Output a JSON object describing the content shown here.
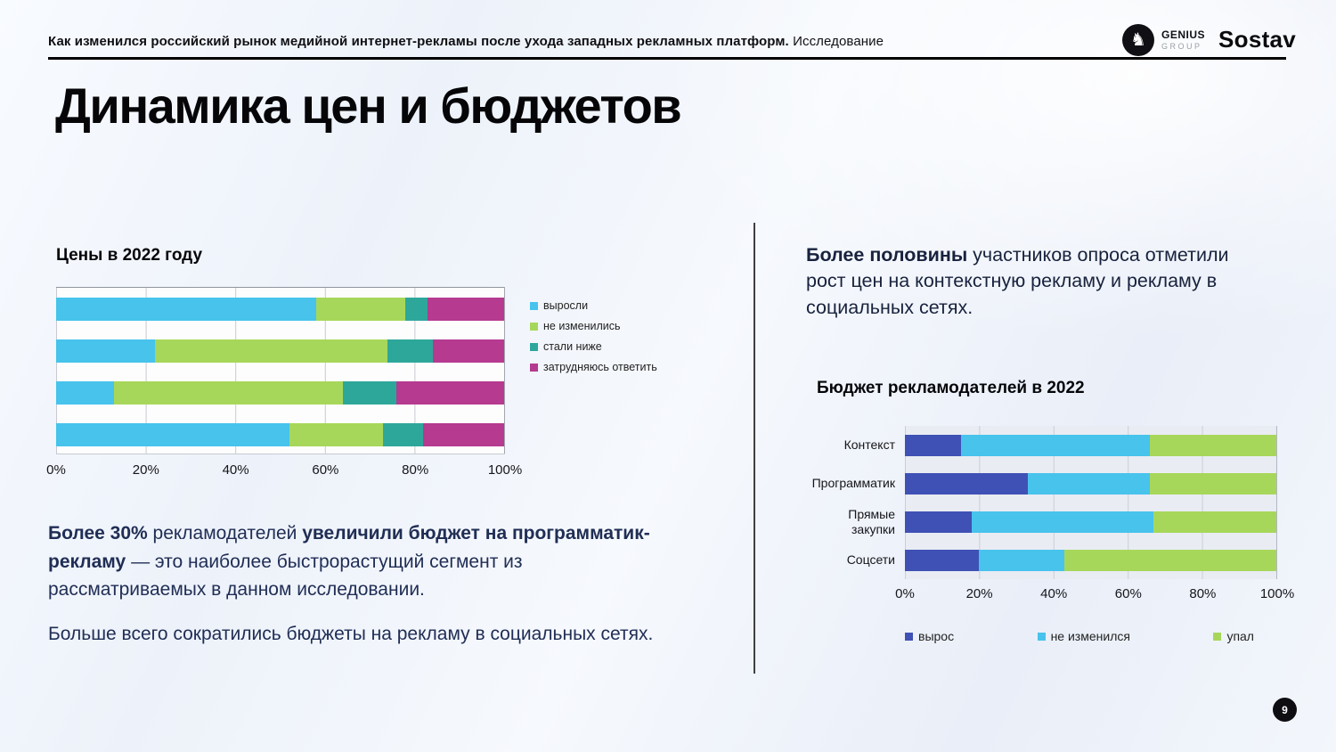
{
  "header": {
    "title_bold": "Как изменился российский рынок медийной интернет-рекламы после ухода западных рекламных платформ.",
    "title_tail": " Исследование",
    "genius_name": "GENIUS",
    "genius_sub": "GROUP",
    "sostav": "Sostav"
  },
  "page_title": "Динамика цен и бюджетов",
  "lead": {
    "bold": "Более половины",
    "rest": " участников опроса отметили рост цен на контекстную рекламу и рекламу в социальных сетях."
  },
  "insight": {
    "bold1": "Более 30%",
    "t1": " рекламодателей ",
    "bold2": "увеличили бюджет на программатик-рекламу",
    "t2": " — это наиболее быстрорастущий сегмент из рассматриваемых в данном исследовании.",
    "p2": "Больше всего сократились бюджеты на рекламу в социальных сетях."
  },
  "page_number": "9",
  "chart_data": [
    {
      "type": "bar",
      "orientation": "horizontal-stacked",
      "title": "Цены в 2022 году",
      "categories": [
        "",
        "",
        "",
        ""
      ],
      "series": [
        {
          "name": "выросли",
          "color": "#47C3EC",
          "values": [
            58,
            22,
            13,
            52
          ]
        },
        {
          "name": "не изменились",
          "color": "#A7D75A",
          "values": [
            20,
            52,
            51,
            21
          ]
        },
        {
          "name": "стали ниже",
          "color": "#2EA79B",
          "values": [
            5,
            10,
            12,
            9
          ]
        },
        {
          "name": "затрудняюсь ответить",
          "color": "#B53A90",
          "values": [
            17,
            16,
            24,
            18
          ]
        }
      ],
      "xticks": [
        "0%",
        "20%",
        "40%",
        "60%",
        "80%",
        "100%"
      ],
      "xlim": [
        0,
        100
      ],
      "grid": true,
      "legend_position": "right"
    },
    {
      "type": "bar",
      "orientation": "horizontal-stacked",
      "title": "Бюджет рекламодателей в 2022",
      "categories": [
        "Контекст",
        "Программатик",
        "Прямые закупки",
        "Соцсети"
      ],
      "series": [
        {
          "name": "вырос",
          "color": "#3F51B5",
          "values": [
            15,
            33,
            18,
            20
          ]
        },
        {
          "name": "не изменился",
          "color": "#47C3EC",
          "values": [
            51,
            33,
            49,
            23
          ]
        },
        {
          "name": "упал",
          "color": "#A7D75A",
          "values": [
            34,
            34,
            33,
            57
          ]
        }
      ],
      "xticks": [
        "0%",
        "20%",
        "40%",
        "60%",
        "80%",
        "100%"
      ],
      "xlim": [
        0,
        100
      ],
      "grid": true,
      "legend_position": "bottom"
    }
  ]
}
